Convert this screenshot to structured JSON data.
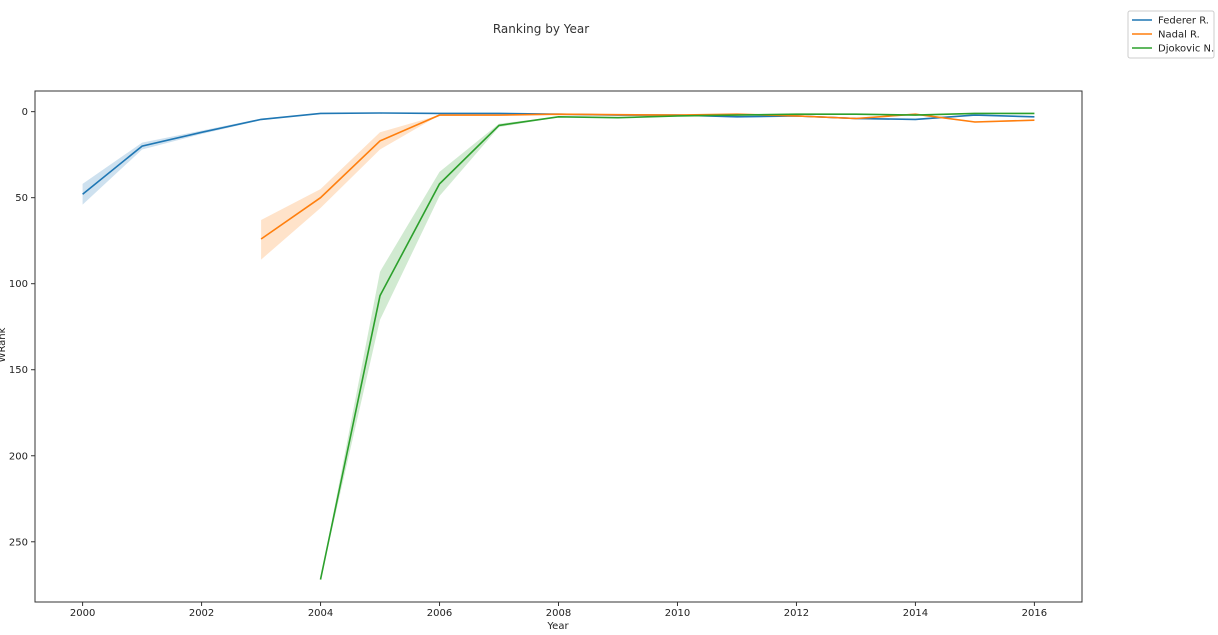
{
  "chart_data": {
    "type": "line",
    "title": "Ranking by Year",
    "xlabel": "Year",
    "ylabel": "WRank",
    "xlim": [
      1999.2,
      2016.8
    ],
    "ylim": [
      285,
      -12
    ],
    "y_inverted": true,
    "xticks": [
      2000,
      2002,
      2004,
      2006,
      2008,
      2010,
      2012,
      2014,
      2016
    ],
    "yticks": [
      0,
      50,
      100,
      150,
      200,
      250
    ],
    "grid": false,
    "legend_position": "top-right-outside",
    "series": [
      {
        "name": "Federer R.",
        "color": "#1f77b4",
        "x": [
          2000,
          2001,
          2002,
          2003,
          2004,
          2005,
          2006,
          2007,
          2008,
          2009,
          2010,
          2011,
          2012,
          2013,
          2014,
          2015,
          2016
        ],
        "y": [
          48,
          20,
          12,
          4.5,
          1,
          0.8,
          1,
          1,
          1.5,
          2,
          2,
          3,
          2.5,
          4,
          4.5,
          2,
          3
        ],
        "ci_low": [
          42,
          18,
          11,
          4,
          1,
          0.8,
          1,
          1,
          1.2,
          1.8,
          1.8,
          2.6,
          2.2,
          3.5,
          4,
          1.7,
          2.7
        ],
        "ci_high": [
          54,
          22,
          13,
          5,
          1,
          0.8,
          1,
          1,
          1.8,
          2.2,
          2.2,
          3.4,
          2.8,
          4.5,
          5,
          2.3,
          3.3
        ]
      },
      {
        "name": "Nadal R.",
        "color": "#ff7f0e",
        "x": [
          2003,
          2004,
          2005,
          2006,
          2007,
          2008,
          2009,
          2010,
          2011,
          2012,
          2013,
          2014,
          2015,
          2016
        ],
        "y": [
          74,
          50,
          17,
          2,
          2,
          1.5,
          1.8,
          2,
          1.5,
          2.5,
          4,
          1.5,
          6,
          5
        ],
        "ci_low": [
          63,
          45,
          12,
          2,
          2,
          1.3,
          1.5,
          1.8,
          1.2,
          2.2,
          3.5,
          1.2,
          5.5,
          4.6
        ],
        "ci_high": [
          86,
          56,
          22,
          2,
          2,
          1.7,
          2.1,
          2.2,
          1.8,
          2.8,
          4.5,
          1.8,
          6.5,
          5.4
        ]
      },
      {
        "name": "Djokovic N.",
        "color": "#2ca02c",
        "x": [
          2004,
          2005,
          2006,
          2007,
          2008,
          2009,
          2010,
          2011,
          2012,
          2013,
          2014,
          2015,
          2016
        ],
        "y": [
          272,
          107,
          42,
          8,
          3,
          3.5,
          2.5,
          2,
          1.5,
          1.5,
          2,
          1,
          1
        ],
        "ci_low": [
          272,
          93,
          35,
          7,
          2.8,
          3.2,
          2.2,
          1.8,
          1.3,
          1.3,
          1.8,
          1,
          1
        ],
        "ci_high": [
          272,
          121,
          49,
          9,
          3.2,
          3.8,
          2.8,
          2.2,
          1.7,
          1.7,
          2.2,
          1,
          1
        ]
      }
    ]
  }
}
